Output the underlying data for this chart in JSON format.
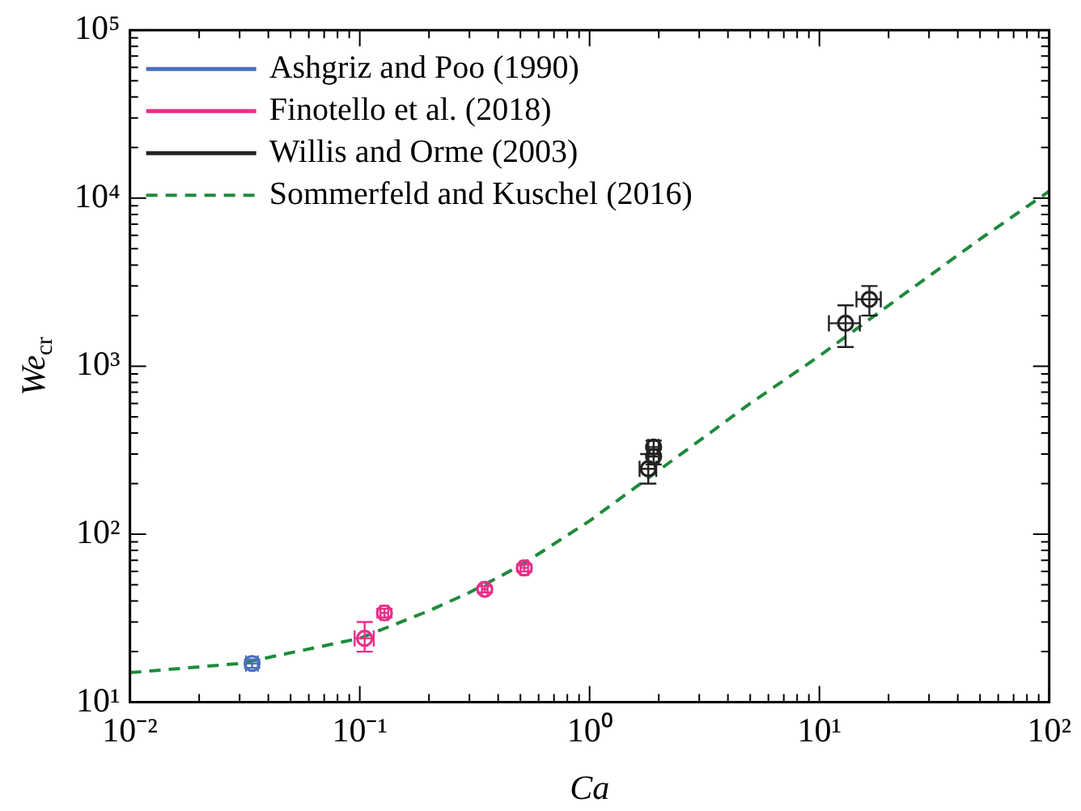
{
  "chart_data": {
    "type": "scatter",
    "xlabel": "Ca",
    "ylabel": "We$_{cr}$",
    "log": "xy",
    "marker": "circle",
    "legend": "top left",
    "grid": false,
    "xlim": [
      0.01,
      100
    ],
    "ylim": [
      10,
      100000
    ],
    "xticks": [
      {
        "value": 0.01,
        "label": "10⁻²"
      },
      {
        "value": 0.1,
        "label": "10⁻¹"
      },
      {
        "value": 1,
        "label": "10⁰"
      },
      {
        "value": 10,
        "label": "10¹"
      },
      {
        "value": 100,
        "label": "10²"
      }
    ],
    "yticks": [
      {
        "value": 10,
        "label": "10¹"
      },
      {
        "value": 100,
        "label": "10²"
      },
      {
        "value": 1000,
        "label": "10³"
      },
      {
        "value": 10000,
        "label": "10⁴"
      },
      {
        "value": 100000,
        "label": "10⁵"
      }
    ],
    "series": [
      {
        "name": "Ashgriz and Poo (1990)",
        "color": "#4a6fbf",
        "x": [
          0.034
        ],
        "values": [
          17
        ],
        "errors": [
          1
        ],
        "xerrors": [
          0.002
        ]
      },
      {
        "name": "Finotello et al. (2018)",
        "color": "#e8308a",
        "x": [
          0.105,
          0.128,
          0.35,
          0.52
        ],
        "values": [
          24,
          34,
          47,
          63
        ],
        "errors": [
          [
            20,
            30
          ],
          2,
          2,
          3
        ],
        "xerrors": [
          0.01,
          0.005,
          0.01,
          0.02
        ]
      },
      {
        "name": "Willis and Orme (2003)",
        "color": "#222222",
        "x": [
          1.8,
          1.9,
          1.9,
          13,
          16.5
        ],
        "values": [
          245,
          290,
          330,
          1800,
          2500
        ],
        "errors": [
          [
            200,
            300
          ],
          30,
          30,
          [
            1300,
            2300
          ],
          [
            2000,
            3000
          ]
        ],
        "xerrors": [
          0.15,
          0.1,
          0.1,
          2,
          2
        ]
      },
      {
        "name": "Sommerfeld and Kuschel (2016)",
        "type": "line",
        "line_style": "dashed",
        "marker": "none",
        "color": "#1e8a3c",
        "x": [
          0.01,
          0.03,
          0.1,
          0.2,
          0.3,
          0.5,
          1,
          2,
          3,
          5,
          10,
          20,
          50,
          100
        ],
        "values": [
          15,
          17,
          24,
          35,
          45,
          65,
          120,
          240,
          360,
          600,
          1150,
          2300,
          5700,
          11000
        ]
      }
    ]
  }
}
